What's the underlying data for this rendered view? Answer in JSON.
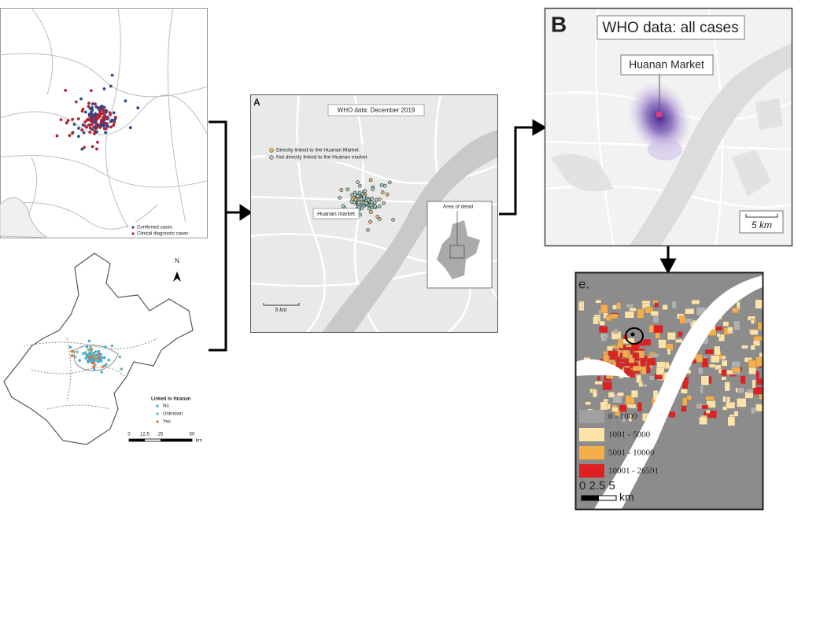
{
  "panels": {
    "top_left": {
      "legend": [
        "Confirmed cases",
        "Clinical diagnostic cases"
      ]
    },
    "bottom_left": {
      "north": "N",
      "legend_title": "Linked to Huanan",
      "legend": [
        "No",
        "Unknown",
        "Yes"
      ],
      "scale": [
        "0",
        "12.5",
        "25",
        "50"
      ],
      "scale_unit": "km"
    },
    "a": {
      "letter": "A",
      "title": "WHO data: December 2019",
      "legend": [
        "Directly linked to the Huanan Market",
        "Not directly linked to the Huanan market"
      ],
      "market_label": "Huanan market",
      "inset_label": "Area of detail",
      "scale": "5 km"
    },
    "b": {
      "letter": "B",
      "title": "WHO data: all cases",
      "market_label": "Huanan Market",
      "scale": "5 km"
    },
    "e": {
      "letter": "e.",
      "legend": [
        "0 - 1000",
        "1001 - 5000",
        "5001 - 10000",
        "10001 - 26591"
      ],
      "scale": "0 2.5 5",
      "scale_unit": "km"
    }
  }
}
